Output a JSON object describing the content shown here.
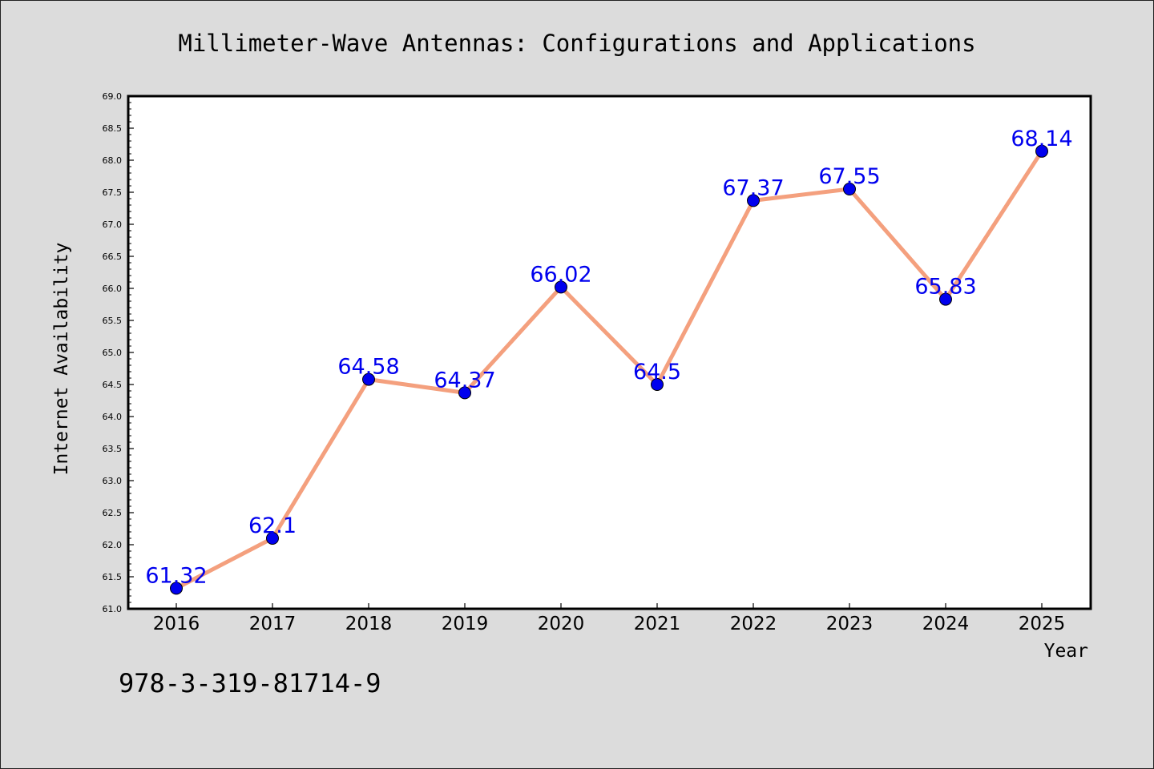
{
  "chart_data": {
    "type": "line",
    "title": "Millimeter-Wave Antennas: Configurations and Applications",
    "xlabel": "Year",
    "ylabel": "Internet Availability",
    "categories": [
      "2016",
      "2017",
      "2018",
      "2019",
      "2020",
      "2021",
      "2022",
      "2023",
      "2024",
      "2025"
    ],
    "series": [
      {
        "values": [
          61.32,
          62.1,
          64.58,
          64.37,
          66.02,
          64.5,
          67.37,
          67.55,
          65.83,
          68.14
        ],
        "data_labels": [
          "61.32",
          "62.1",
          "64.58",
          "64.37",
          "66.02",
          "64.5",
          "67.37",
          "67.55",
          "65.83",
          "68.14"
        ]
      }
    ],
    "ylim": [
      61.0,
      69.0
    ],
    "yticks": [
      "61.0",
      "61.5",
      "62.0",
      "62.5",
      "63.0",
      "63.5",
      "64.0",
      "64.5",
      "65.0",
      "65.5",
      "66.0",
      "66.5",
      "67.0",
      "67.5",
      "68.0",
      "68.5",
      "69.0"
    ],
    "grid": false,
    "legend": "none",
    "colors": {
      "line": "#f4a07e",
      "marker": "#0000ee",
      "label": "#0000ee",
      "background": "#dcdcdc",
      "plot_background": "#ffffff"
    }
  },
  "footnote": "978-3-319-81714-9"
}
